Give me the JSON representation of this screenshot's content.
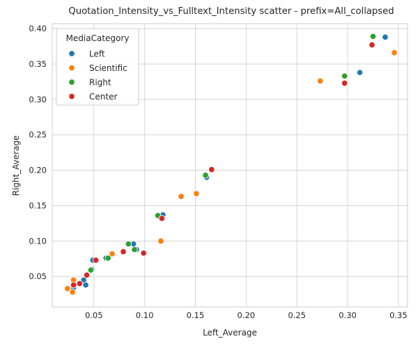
{
  "chart_data": {
    "type": "scatter",
    "title": "Quotation_Intensity_vs_Fulltext_Intensity scatter - prefix=All_collapsed",
    "xlabel": "Left_Average",
    "ylabel": "Right_Average",
    "xlim": [
      0.009,
      0.359
    ],
    "ylim": [
      0.007,
      0.407
    ],
    "x_ticks": [
      "0.05",
      "0.10",
      "0.15",
      "0.20",
      "0.25",
      "0.30",
      "0.35"
    ],
    "y_ticks": [
      "0.05",
      "0.10",
      "0.15",
      "0.20",
      "0.25",
      "0.30",
      "0.35",
      "0.40"
    ],
    "grid": true,
    "legend_title": "MediaCategory",
    "legend_position": "upper-left",
    "series": [
      {
        "name": "Left",
        "color": "#1f77b4",
        "points": [
          [
            0.337,
            0.388
          ],
          [
            0.312,
            0.338
          ],
          [
            0.161,
            0.19
          ],
          [
            0.118,
            0.137
          ],
          [
            0.089,
            0.096
          ],
          [
            0.092,
            0.088
          ],
          [
            0.062,
            0.076
          ],
          [
            0.048,
            0.06
          ],
          [
            0.04,
            0.045
          ],
          [
            0.042,
            0.038
          ],
          [
            0.03,
            0.034
          ],
          [
            0.049,
            0.073
          ]
        ]
      },
      {
        "name": "Scientific",
        "color": "#ff7f0e",
        "points": [
          [
            0.346,
            0.366
          ],
          [
            0.273,
            0.326
          ],
          [
            0.151,
            0.167
          ],
          [
            0.136,
            0.163
          ],
          [
            0.116,
            0.1
          ],
          [
            0.068,
            0.082
          ],
          [
            0.03,
            0.045
          ],
          [
            0.024,
            0.033
          ],
          [
            0.029,
            0.028
          ]
        ]
      },
      {
        "name": "Right",
        "color": "#2ca02c",
        "points": [
          [
            0.325,
            0.389
          ],
          [
            0.297,
            0.333
          ],
          [
            0.16,
            0.193
          ],
          [
            0.113,
            0.136
          ],
          [
            0.084,
            0.096
          ],
          [
            0.09,
            0.088
          ],
          [
            0.064,
            0.076
          ],
          [
            0.047,
            0.059
          ]
        ]
      },
      {
        "name": "Center",
        "color": "#d62728",
        "points": [
          [
            0.324,
            0.377
          ],
          [
            0.297,
            0.323
          ],
          [
            0.166,
            0.201
          ],
          [
            0.117,
            0.132
          ],
          [
            0.099,
            0.083
          ],
          [
            0.079,
            0.085
          ],
          [
            0.052,
            0.073
          ],
          [
            0.043,
            0.052
          ],
          [
            0.036,
            0.04
          ],
          [
            0.03,
            0.038
          ]
        ]
      }
    ]
  }
}
